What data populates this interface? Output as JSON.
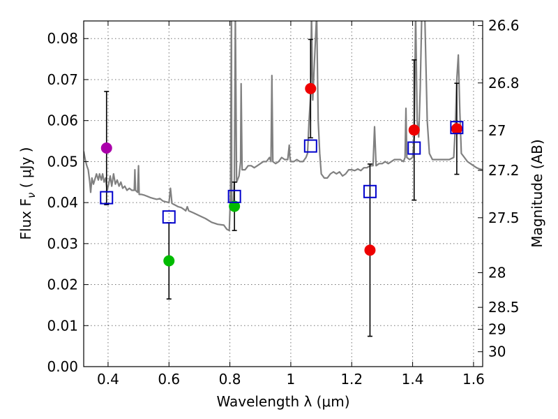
{
  "chart_data": {
    "type": "scatter",
    "xlabel": "Wavelength  λ (μm)",
    "ylabel_left": "Flux  F",
    "ylabel_left_sub": "ν",
    "ylabel_left_units": " ( μJy )",
    "ylabel_right": "Magnitude (AB)",
    "xlim": [
      0.32,
      1.63
    ],
    "ylim": [
      0.0,
      0.0843
    ],
    "grid": true,
    "x_ticks": [
      {
        "value": 0.4,
        "label": "0.4"
      },
      {
        "value": 0.6,
        "label": "0.6"
      },
      {
        "value": 0.8,
        "label": "0.8"
      },
      {
        "value": 1.0,
        "label": "1"
      },
      {
        "value": 1.2,
        "label": "1.2"
      },
      {
        "value": 1.4,
        "label": "1.4"
      },
      {
        "value": 1.6,
        "label": "1.6"
      }
    ],
    "y_ticks": [
      {
        "value": 0.0,
        "label": "0.00"
      },
      {
        "value": 0.01,
        "label": "0.01"
      },
      {
        "value": 0.02,
        "label": "0.02"
      },
      {
        "value": 0.03,
        "label": "0.03"
      },
      {
        "value": 0.04,
        "label": "0.04"
      },
      {
        "value": 0.05,
        "label": "0.05"
      },
      {
        "value": 0.06,
        "label": "0.06"
      },
      {
        "value": 0.07,
        "label": "0.07"
      },
      {
        "value": 0.08,
        "label": "0.08"
      }
    ],
    "mag_ticks": [
      {
        "label": "26.6",
        "mag": 26.6
      },
      {
        "label": "26.8",
        "mag": 26.8
      },
      {
        "label": "27",
        "mag": 27.0
      },
      {
        "label": "27.2",
        "mag": 27.2
      },
      {
        "label": "27.5",
        "mag": 27.5
      },
      {
        "label": "28",
        "mag": 28.0
      },
      {
        "label": "28.5",
        "mag": 28.5
      },
      {
        "label": "29",
        "mag": 29.0
      },
      {
        "label": "30",
        "mag": 30.0
      }
    ],
    "observed": [
      {
        "x": 0.395,
        "y": 0.0533,
        "err": 0.0138,
        "color": "#aa00aa"
      },
      {
        "x": 0.6,
        "y": 0.0258,
        "err": 0.0093,
        "color": "#00bb00"
      },
      {
        "x": 0.815,
        "y": 0.0391,
        "err": 0.0059,
        "color": "#00bb00"
      },
      {
        "x": 1.065,
        "y": 0.0678,
        "err": 0.012,
        "color": "#ee0000"
      },
      {
        "x": 1.26,
        "y": 0.0284,
        "err": 0.021,
        "color": "#ee0000"
      },
      {
        "x": 1.405,
        "y": 0.0577,
        "err": 0.0171,
        "color": "#ee0000"
      },
      {
        "x": 1.545,
        "y": 0.058,
        "err": 0.0111,
        "color": "#ee0000"
      }
    ],
    "model_points": [
      {
        "x": 0.395,
        "y": 0.0412
      },
      {
        "x": 0.6,
        "y": 0.0365
      },
      {
        "x": 0.815,
        "y": 0.0415
      },
      {
        "x": 1.065,
        "y": 0.0538
      },
      {
        "x": 1.26,
        "y": 0.0427
      },
      {
        "x": 1.405,
        "y": 0.0533
      },
      {
        "x": 1.545,
        "y": 0.0583
      }
    ],
    "model_spectrum": [
      [
        0.32,
        0.0525
      ],
      [
        0.325,
        0.0505
      ],
      [
        0.33,
        0.049
      ],
      [
        0.335,
        0.048
      ],
      [
        0.34,
        0.045
      ],
      [
        0.343,
        0.0425
      ],
      [
        0.347,
        0.046
      ],
      [
        0.352,
        0.0445
      ],
      [
        0.358,
        0.046
      ],
      [
        0.362,
        0.047
      ],
      [
        0.368,
        0.0455
      ],
      [
        0.372,
        0.047
      ],
      [
        0.378,
        0.0455
      ],
      [
        0.382,
        0.047
      ],
      [
        0.387,
        0.045
      ],
      [
        0.392,
        0.046
      ],
      [
        0.397,
        0.043
      ],
      [
        0.402,
        0.0445
      ],
      [
        0.407,
        0.0465
      ],
      [
        0.412,
        0.044
      ],
      [
        0.418,
        0.047
      ],
      [
        0.424,
        0.0445
      ],
      [
        0.43,
        0.0455
      ],
      [
        0.436,
        0.044
      ],
      [
        0.442,
        0.045
      ],
      [
        0.448,
        0.0435
      ],
      [
        0.455,
        0.044
      ],
      [
        0.462,
        0.043
      ],
      [
        0.47,
        0.0435
      ],
      [
        0.478,
        0.043
      ],
      [
        0.486,
        0.043
      ],
      [
        0.488,
        0.048
      ],
      [
        0.49,
        0.043
      ],
      [
        0.497,
        0.0425
      ],
      [
        0.5,
        0.049
      ],
      [
        0.502,
        0.042
      ],
      [
        0.51,
        0.042
      ],
      [
        0.52,
        0.0418
      ],
      [
        0.53,
        0.0415
      ],
      [
        0.54,
        0.0412
      ],
      [
        0.55,
        0.041
      ],
      [
        0.56,
        0.0408
      ],
      [
        0.57,
        0.041
      ],
      [
        0.58,
        0.0404
      ],
      [
        0.59,
        0.0402
      ],
      [
        0.6,
        0.04
      ],
      [
        0.605,
        0.0435
      ],
      [
        0.61,
        0.0398
      ],
      [
        0.62,
        0.0394
      ],
      [
        0.63,
        0.039
      ],
      [
        0.64,
        0.0388
      ],
      [
        0.65,
        0.0383
      ],
      [
        0.655,
        0.038
      ],
      [
        0.66,
        0.039
      ],
      [
        0.665,
        0.038
      ],
      [
        0.68,
        0.0375
      ],
      [
        0.7,
        0.0368
      ],
      [
        0.72,
        0.0361
      ],
      [
        0.74,
        0.0352
      ],
      [
        0.76,
        0.0347
      ],
      [
        0.78,
        0.0345
      ],
      [
        0.79,
        0.0335
      ],
      [
        0.798,
        0.0332
      ],
      [
        0.802,
        0.042
      ],
      [
        0.805,
        0.086
      ],
      [
        0.806,
        0.04
      ],
      [
        0.81,
        0.038
      ],
      [
        0.815,
        0.046
      ],
      [
        0.818,
        0.086
      ],
      [
        0.822,
        0.045
      ],
      [
        0.83,
        0.0465
      ],
      [
        0.835,
        0.05
      ],
      [
        0.837,
        0.069
      ],
      [
        0.84,
        0.048
      ],
      [
        0.85,
        0.048
      ],
      [
        0.86,
        0.049
      ],
      [
        0.87,
        0.049
      ],
      [
        0.88,
        0.0485
      ],
      [
        0.89,
        0.049
      ],
      [
        0.9,
        0.0495
      ],
      [
        0.91,
        0.05
      ],
      [
        0.92,
        0.05
      ],
      [
        0.93,
        0.051
      ],
      [
        0.935,
        0.05
      ],
      [
        0.938,
        0.071
      ],
      [
        0.941,
        0.05
      ],
      [
        0.95,
        0.0495
      ],
      [
        0.96,
        0.05
      ],
      [
        0.97,
        0.051
      ],
      [
        0.98,
        0.0505
      ],
      [
        0.99,
        0.0505
      ],
      [
        0.995,
        0.054
      ],
      [
        0.997,
        0.051
      ],
      [
        1.0,
        0.05
      ],
      [
        1.01,
        0.05
      ],
      [
        1.02,
        0.0505
      ],
      [
        1.03,
        0.05
      ],
      [
        1.04,
        0.05
      ],
      [
        1.05,
        0.051
      ],
      [
        1.055,
        0.052
      ],
      [
        1.06,
        0.06
      ],
      [
        1.065,
        0.066
      ],
      [
        1.068,
        0.086
      ],
      [
        1.072,
        0.065
      ],
      [
        1.08,
        0.078
      ],
      [
        1.085,
        0.086
      ],
      [
        1.09,
        0.06
      ],
      [
        1.095,
        0.052
      ],
      [
        1.1,
        0.047
      ],
      [
        1.11,
        0.046
      ],
      [
        1.12,
        0.046
      ],
      [
        1.13,
        0.047
      ],
      [
        1.14,
        0.0475
      ],
      [
        1.15,
        0.047
      ],
      [
        1.16,
        0.0475
      ],
      [
        1.17,
        0.0465
      ],
      [
        1.18,
        0.047
      ],
      [
        1.19,
        0.048
      ],
      [
        1.2,
        0.048
      ],
      [
        1.21,
        0.0478
      ],
      [
        1.22,
        0.0482
      ],
      [
        1.23,
        0.0478
      ],
      [
        1.24,
        0.0485
      ],
      [
        1.25,
        0.0485
      ],
      [
        1.26,
        0.049
      ],
      [
        1.27,
        0.049
      ],
      [
        1.275,
        0.0585
      ],
      [
        1.28,
        0.049
      ],
      [
        1.29,
        0.0495
      ],
      [
        1.3,
        0.0495
      ],
      [
        1.31,
        0.05
      ],
      [
        1.32,
        0.0495
      ],
      [
        1.33,
        0.05
      ],
      [
        1.34,
        0.0505
      ],
      [
        1.35,
        0.0505
      ],
      [
        1.36,
        0.0505
      ],
      [
        1.37,
        0.05
      ],
      [
        1.375,
        0.051
      ],
      [
        1.378,
        0.063
      ],
      [
        1.381,
        0.051
      ],
      [
        1.39,
        0.0505
      ],
      [
        1.4,
        0.051
      ],
      [
        1.405,
        0.056
      ],
      [
        1.41,
        0.086
      ],
      [
        1.415,
        0.06
      ],
      [
        1.42,
        0.056
      ],
      [
        1.425,
        0.068
      ],
      [
        1.43,
        0.086
      ],
      [
        1.44,
        0.086
      ],
      [
        1.448,
        0.06
      ],
      [
        1.455,
        0.052
      ],
      [
        1.465,
        0.0505
      ],
      [
        1.48,
        0.0505
      ],
      [
        1.5,
        0.0505
      ],
      [
        1.52,
        0.0505
      ],
      [
        1.535,
        0.051
      ],
      [
        1.54,
        0.058
      ],
      [
        1.545,
        0.07
      ],
      [
        1.55,
        0.076
      ],
      [
        1.555,
        0.062
      ],
      [
        1.56,
        0.052
      ],
      [
        1.57,
        0.051
      ],
      [
        1.58,
        0.05
      ],
      [
        1.59,
        0.0495
      ],
      [
        1.6,
        0.049
      ],
      [
        1.61,
        0.0485
      ],
      [
        1.62,
        0.0482
      ],
      [
        1.63,
        0.048
      ]
    ],
    "colors": {
      "spectrum": "#808080",
      "model_point": "#0000cc",
      "errorbar": "#000000",
      "axes": "#000000"
    }
  }
}
